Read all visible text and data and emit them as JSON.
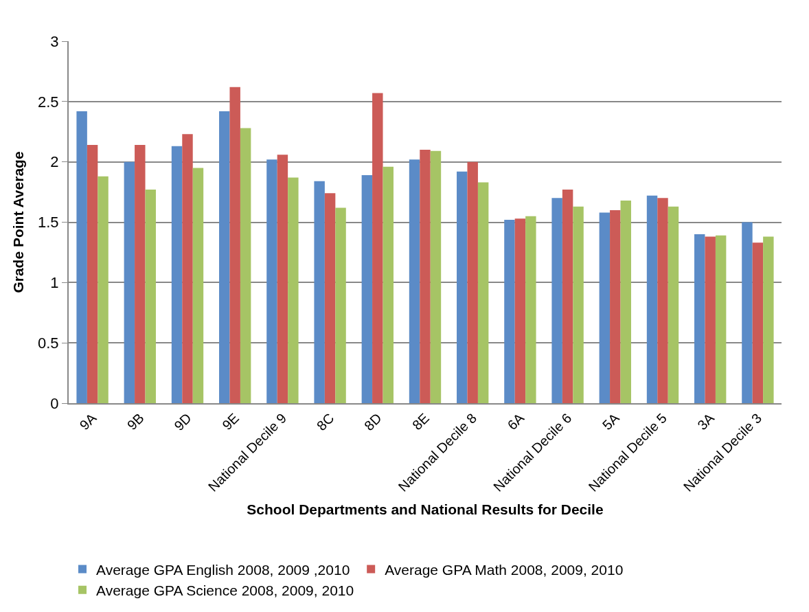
{
  "chart_data": {
    "type": "bar",
    "xlabel": "School Departments and National Results for Decile",
    "ylabel": "Grade Point Average",
    "categories": [
      "9A",
      "9B",
      "9D",
      "9E",
      "National Decile 9",
      "8C",
      "8D",
      "8E",
      "National Decile 8",
      "6A",
      "National Decile 6",
      "5A",
      "National Decile 5",
      "3A",
      "National Decile 3"
    ],
    "series": [
      {
        "name": "Average GPA English 2008, 2009 ,2010",
        "color": "#5b8bc7",
        "values": [
          2.42,
          2.0,
          2.13,
          2.42,
          2.02,
          1.84,
          1.89,
          2.02,
          1.92,
          1.52,
          1.7,
          1.58,
          1.72,
          1.4,
          1.5
        ]
      },
      {
        "name": "Average GPA Math 2008, 2009, 2010",
        "color": "#cc5b57",
        "values": [
          2.14,
          2.14,
          2.23,
          2.62,
          2.06,
          1.74,
          2.57,
          2.1,
          2.0,
          1.53,
          1.77,
          1.6,
          1.7,
          1.38,
          1.33
        ]
      },
      {
        "name": "Average GPA Science 2008, 2009, 2010",
        "color": "#a6c465",
        "values": [
          1.88,
          1.77,
          1.95,
          2.28,
          1.87,
          1.62,
          1.96,
          2.09,
          1.83,
          1.55,
          1.63,
          1.68,
          1.63,
          1.39,
          1.38
        ]
      }
    ],
    "ylim": [
      0,
      3
    ],
    "yticks": [
      0,
      0.5,
      1,
      1.5,
      2,
      2.5,
      3
    ],
    "grid": "y",
    "legend": "bottom"
  }
}
